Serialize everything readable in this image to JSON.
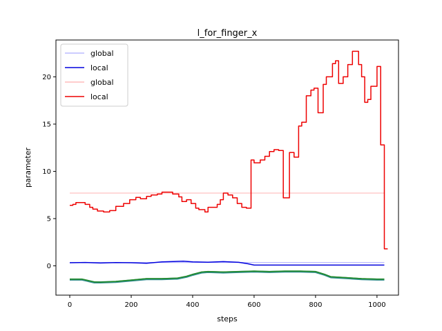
{
  "chart_data": {
    "type": "line",
    "title": "l_for_finger_x",
    "xlabel": "steps",
    "ylabel": "parameter",
    "xlim": [
      -45,
      1070
    ],
    "ylim": [
      -3.1,
      23.9
    ],
    "xticks": [
      0,
      200,
      400,
      600,
      800,
      1000
    ],
    "yticks": [
      0,
      5,
      10,
      15,
      20
    ],
    "grid": false,
    "legend_position": "top-left",
    "legend": [
      {
        "label": "global",
        "color": "#bbbbff"
      },
      {
        "label": "local",
        "color": "#0000dd"
      },
      {
        "label": "global",
        "color": "#ffbbbb"
      },
      {
        "label": "local",
        "color": "#ee0000"
      }
    ],
    "series": [
      {
        "color": "#b3b3ff",
        "width": 1.2,
        "points": [
          [
            0,
            0.35
          ],
          [
            1024,
            0.35
          ]
        ]
      },
      {
        "color": "#0000dd",
        "width": 1.5,
        "points": [
          [
            0,
            0.33
          ],
          [
            50,
            0.36
          ],
          [
            100,
            0.3
          ],
          [
            150,
            0.35
          ],
          [
            200,
            0.33
          ],
          [
            250,
            0.28
          ],
          [
            300,
            0.42
          ],
          [
            370,
            0.5
          ],
          [
            400,
            0.42
          ],
          [
            450,
            0.38
          ],
          [
            500,
            0.45
          ],
          [
            550,
            0.37
          ],
          [
            580,
            0.22
          ],
          [
            600,
            0.08
          ],
          [
            700,
            0.08
          ],
          [
            800,
            0.08
          ],
          [
            900,
            0.08
          ],
          [
            1024,
            0.08
          ]
        ]
      },
      {
        "color": "#ffc0c0",
        "width": 1.2,
        "points": [
          [
            0,
            7.7
          ],
          [
            1024,
            7.7
          ]
        ]
      },
      {
        "color": "#ee0000",
        "width": 1.5,
        "step": true,
        "points": [
          [
            0,
            6.4
          ],
          [
            10,
            6.5
          ],
          [
            20,
            6.7
          ],
          [
            50,
            6.5
          ],
          [
            65,
            6.2
          ],
          [
            75,
            6.0
          ],
          [
            90,
            5.8
          ],
          [
            110,
            5.7
          ],
          [
            130,
            5.85
          ],
          [
            150,
            6.3
          ],
          [
            175,
            6.6
          ],
          [
            195,
            7.0
          ],
          [
            215,
            7.25
          ],
          [
            230,
            7.1
          ],
          [
            250,
            7.35
          ],
          [
            265,
            7.5
          ],
          [
            285,
            7.6
          ],
          [
            300,
            7.8
          ],
          [
            335,
            7.6
          ],
          [
            355,
            7.3
          ],
          [
            365,
            6.8
          ],
          [
            380,
            7.0
          ],
          [
            395,
            6.6
          ],
          [
            410,
            6.1
          ],
          [
            420,
            5.95
          ],
          [
            440,
            5.7
          ],
          [
            450,
            6.2
          ],
          [
            480,
            6.5
          ],
          [
            490,
            7.0
          ],
          [
            500,
            7.7
          ],
          [
            515,
            7.5
          ],
          [
            530,
            7.2
          ],
          [
            545,
            6.6
          ],
          [
            560,
            6.2
          ],
          [
            575,
            6.1
          ],
          [
            590,
            11.2
          ],
          [
            600,
            10.9
          ],
          [
            620,
            11.2
          ],
          [
            635,
            11.6
          ],
          [
            650,
            12.1
          ],
          [
            665,
            12.3
          ],
          [
            680,
            12.2
          ],
          [
            695,
            7.2
          ],
          [
            715,
            12.0
          ],
          [
            730,
            11.5
          ],
          [
            745,
            14.8
          ],
          [
            755,
            15.2
          ],
          [
            770,
            18.0
          ],
          [
            785,
            18.6
          ],
          [
            795,
            18.8
          ],
          [
            808,
            16.2
          ],
          [
            825,
            19.2
          ],
          [
            835,
            20.0
          ],
          [
            855,
            21.4
          ],
          [
            865,
            21.7
          ],
          [
            875,
            19.3
          ],
          [
            890,
            20.0
          ],
          [
            905,
            21.3
          ],
          [
            920,
            22.7
          ],
          [
            940,
            21.3
          ],
          [
            950,
            20.0
          ],
          [
            960,
            17.3
          ],
          [
            970,
            17.6
          ],
          [
            980,
            19.0
          ],
          [
            1000,
            21.1
          ],
          [
            1012,
            12.8
          ],
          [
            1024,
            1.8
          ],
          [
            1035,
            1.8
          ]
        ]
      },
      {
        "color": "#2e8b8b",
        "width": 3,
        "points": [
          [
            0,
            -1.45
          ],
          [
            40,
            -1.45
          ],
          [
            80,
            -1.75
          ],
          [
            100,
            -1.75
          ],
          [
            150,
            -1.7
          ],
          [
            200,
            -1.55
          ],
          [
            250,
            -1.4
          ],
          [
            300,
            -1.4
          ],
          [
            350,
            -1.35
          ],
          [
            380,
            -1.15
          ],
          [
            400,
            -0.95
          ],
          [
            430,
            -0.7
          ],
          [
            450,
            -0.65
          ],
          [
            500,
            -0.7
          ],
          [
            550,
            -0.65
          ],
          [
            600,
            -0.6
          ],
          [
            650,
            -0.65
          ],
          [
            700,
            -0.6
          ],
          [
            750,
            -0.6
          ],
          [
            800,
            -0.65
          ],
          [
            830,
            -0.95
          ],
          [
            850,
            -1.2
          ],
          [
            900,
            -1.3
          ],
          [
            950,
            -1.4
          ],
          [
            1000,
            -1.45
          ],
          [
            1024,
            -1.45
          ]
        ]
      },
      {
        "color": "#228b22",
        "width": 1.5,
        "points": [
          [
            0,
            -1.4
          ],
          [
            40,
            -1.4
          ],
          [
            80,
            -1.7
          ],
          [
            100,
            -1.72
          ],
          [
            150,
            -1.65
          ],
          [
            200,
            -1.5
          ],
          [
            250,
            -1.35
          ],
          [
            300,
            -1.35
          ],
          [
            350,
            -1.3
          ],
          [
            380,
            -1.1
          ],
          [
            400,
            -0.9
          ],
          [
            430,
            -0.65
          ],
          [
            450,
            -0.6
          ],
          [
            500,
            -0.65
          ],
          [
            550,
            -0.6
          ],
          [
            600,
            -0.55
          ],
          [
            650,
            -0.6
          ],
          [
            700,
            -0.55
          ],
          [
            750,
            -0.55
          ],
          [
            800,
            -0.6
          ],
          [
            830,
            -0.9
          ],
          [
            850,
            -1.15
          ],
          [
            900,
            -1.25
          ],
          [
            950,
            -1.35
          ],
          [
            1000,
            -1.4
          ],
          [
            1024,
            -1.4
          ]
        ]
      }
    ]
  }
}
